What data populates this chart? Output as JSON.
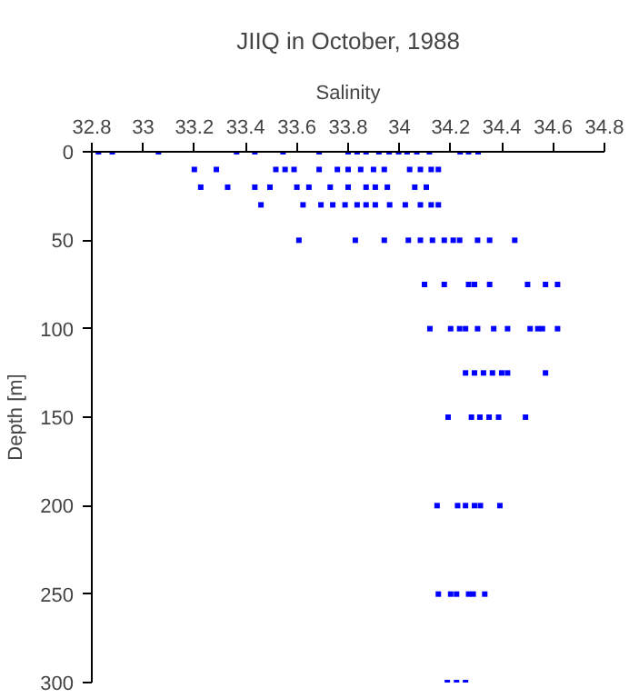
{
  "chart_data": {
    "type": "scatter",
    "title": "JIIQ in October, 1988",
    "xlabel": "Salinity",
    "ylabel": "Depth [m]",
    "xlim": [
      32.8,
      34.8
    ],
    "xticks": [
      32.8,
      33,
      33.2,
      33.4,
      33.6,
      33.8,
      34,
      34.2,
      34.4,
      34.6,
      34.8
    ],
    "ylim": [
      300,
      0
    ],
    "yticks": [
      0,
      50,
      100,
      150,
      200,
      250,
      300
    ],
    "grid": false,
    "marker": "square",
    "series": [
      {
        "color": "#0000ff",
        "x": [
          32.826,
          32.88,
          33.06,
          33.365,
          33.436,
          33.546,
          33.687,
          33.8,
          33.835,
          33.87,
          33.92,
          33.96,
          33.997,
          34.03,
          34.068,
          34.117,
          34.237,
          34.27,
          34.307,
          33.2,
          33.286,
          33.518,
          33.554,
          33.589,
          33.687,
          33.758,
          33.8,
          33.849,
          33.899,
          33.941,
          34.04,
          34.082,
          34.124,
          34.152,
          33.225,
          33.33,
          33.436,
          33.495,
          33.6,
          33.647,
          33.73,
          33.8,
          33.87,
          33.906,
          33.953,
          34.06,
          34.105,
          33.46,
          33.624,
          33.694,
          33.74,
          33.788,
          33.835,
          33.87,
          33.906,
          33.962,
          34.023,
          34.082,
          34.124,
          34.152,
          33.608,
          33.828,
          33.941,
          34.035,
          34.082,
          34.129,
          34.175,
          34.21,
          34.235,
          34.305,
          34.352,
          34.45,
          34.098,
          34.175,
          34.27,
          34.293,
          34.352,
          34.5,
          34.57,
          34.617,
          34.119,
          34.2,
          34.235,
          34.258,
          34.305,
          34.368,
          34.422,
          34.51,
          34.54,
          34.558,
          34.617,
          34.258,
          34.293,
          34.328,
          34.363,
          34.399,
          34.422,
          34.57,
          34.19,
          34.281,
          34.314,
          34.35,
          34.387,
          34.492,
          34.147,
          34.227,
          34.258,
          34.293,
          34.316,
          34.392,
          34.152,
          34.2,
          34.223,
          34.27,
          34.288,
          34.333,
          34.187,
          34.223,
          34.258
        ],
        "values": [
          0,
          0,
          0,
          0,
          0,
          0,
          0,
          0,
          0,
          0,
          0,
          0,
          0,
          0,
          0,
          0,
          0,
          0,
          0,
          10,
          10,
          10,
          10,
          10,
          10,
          10,
          10,
          10,
          10,
          10,
          10,
          10,
          10,
          10,
          20,
          20,
          20,
          20,
          20,
          20,
          20,
          20,
          20,
          20,
          20,
          20,
          20,
          30,
          30,
          30,
          30,
          30,
          30,
          30,
          30,
          30,
          30,
          30,
          30,
          30,
          50,
          50,
          50,
          50,
          50,
          50,
          50,
          50,
          50,
          50,
          50,
          50,
          75,
          75,
          75,
          75,
          75,
          75,
          75,
          75,
          100,
          100,
          100,
          100,
          100,
          100,
          100,
          100,
          100,
          100,
          100,
          125,
          125,
          125,
          125,
          125,
          125,
          125,
          150,
          150,
          150,
          150,
          150,
          150,
          200,
          200,
          200,
          200,
          200,
          200,
          250,
          250,
          250,
          250,
          250,
          250,
          300,
          300,
          300
        ]
      }
    ]
  }
}
